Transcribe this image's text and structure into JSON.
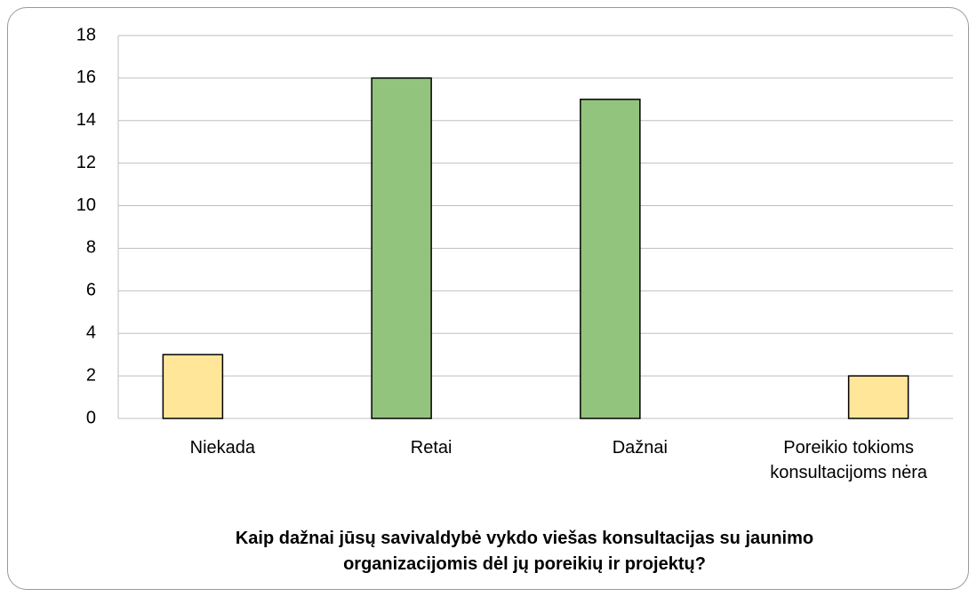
{
  "chart_data": {
    "type": "bar",
    "title": "Kaip dažnai jūsų savivaldybė vykdo viešas konsultacijas su jaunimo organizacijomis dėl jų poreikių ir projektų?",
    "categories": [
      "Niekada",
      "Retai",
      "Dažnai",
      "Poreikio tokioms konsultacijoms nėra"
    ],
    "series": [
      {
        "values": [
          3,
          16,
          15,
          null
        ],
        "colors": [
          "#ffe699",
          "#93c47d",
          "#93c47d",
          "#ffe699"
        ]
      },
      {
        "values": [
          null,
          null,
          null,
          2
        ],
        "colors": [
          "#ffe699",
          "#ffe699",
          "#ffe699",
          "#ffe699"
        ]
      }
    ],
    "ylim": [
      0,
      18
    ],
    "yticks": [
      0,
      2,
      4,
      6,
      8,
      10,
      12,
      14,
      16,
      18
    ],
    "grid": true
  }
}
